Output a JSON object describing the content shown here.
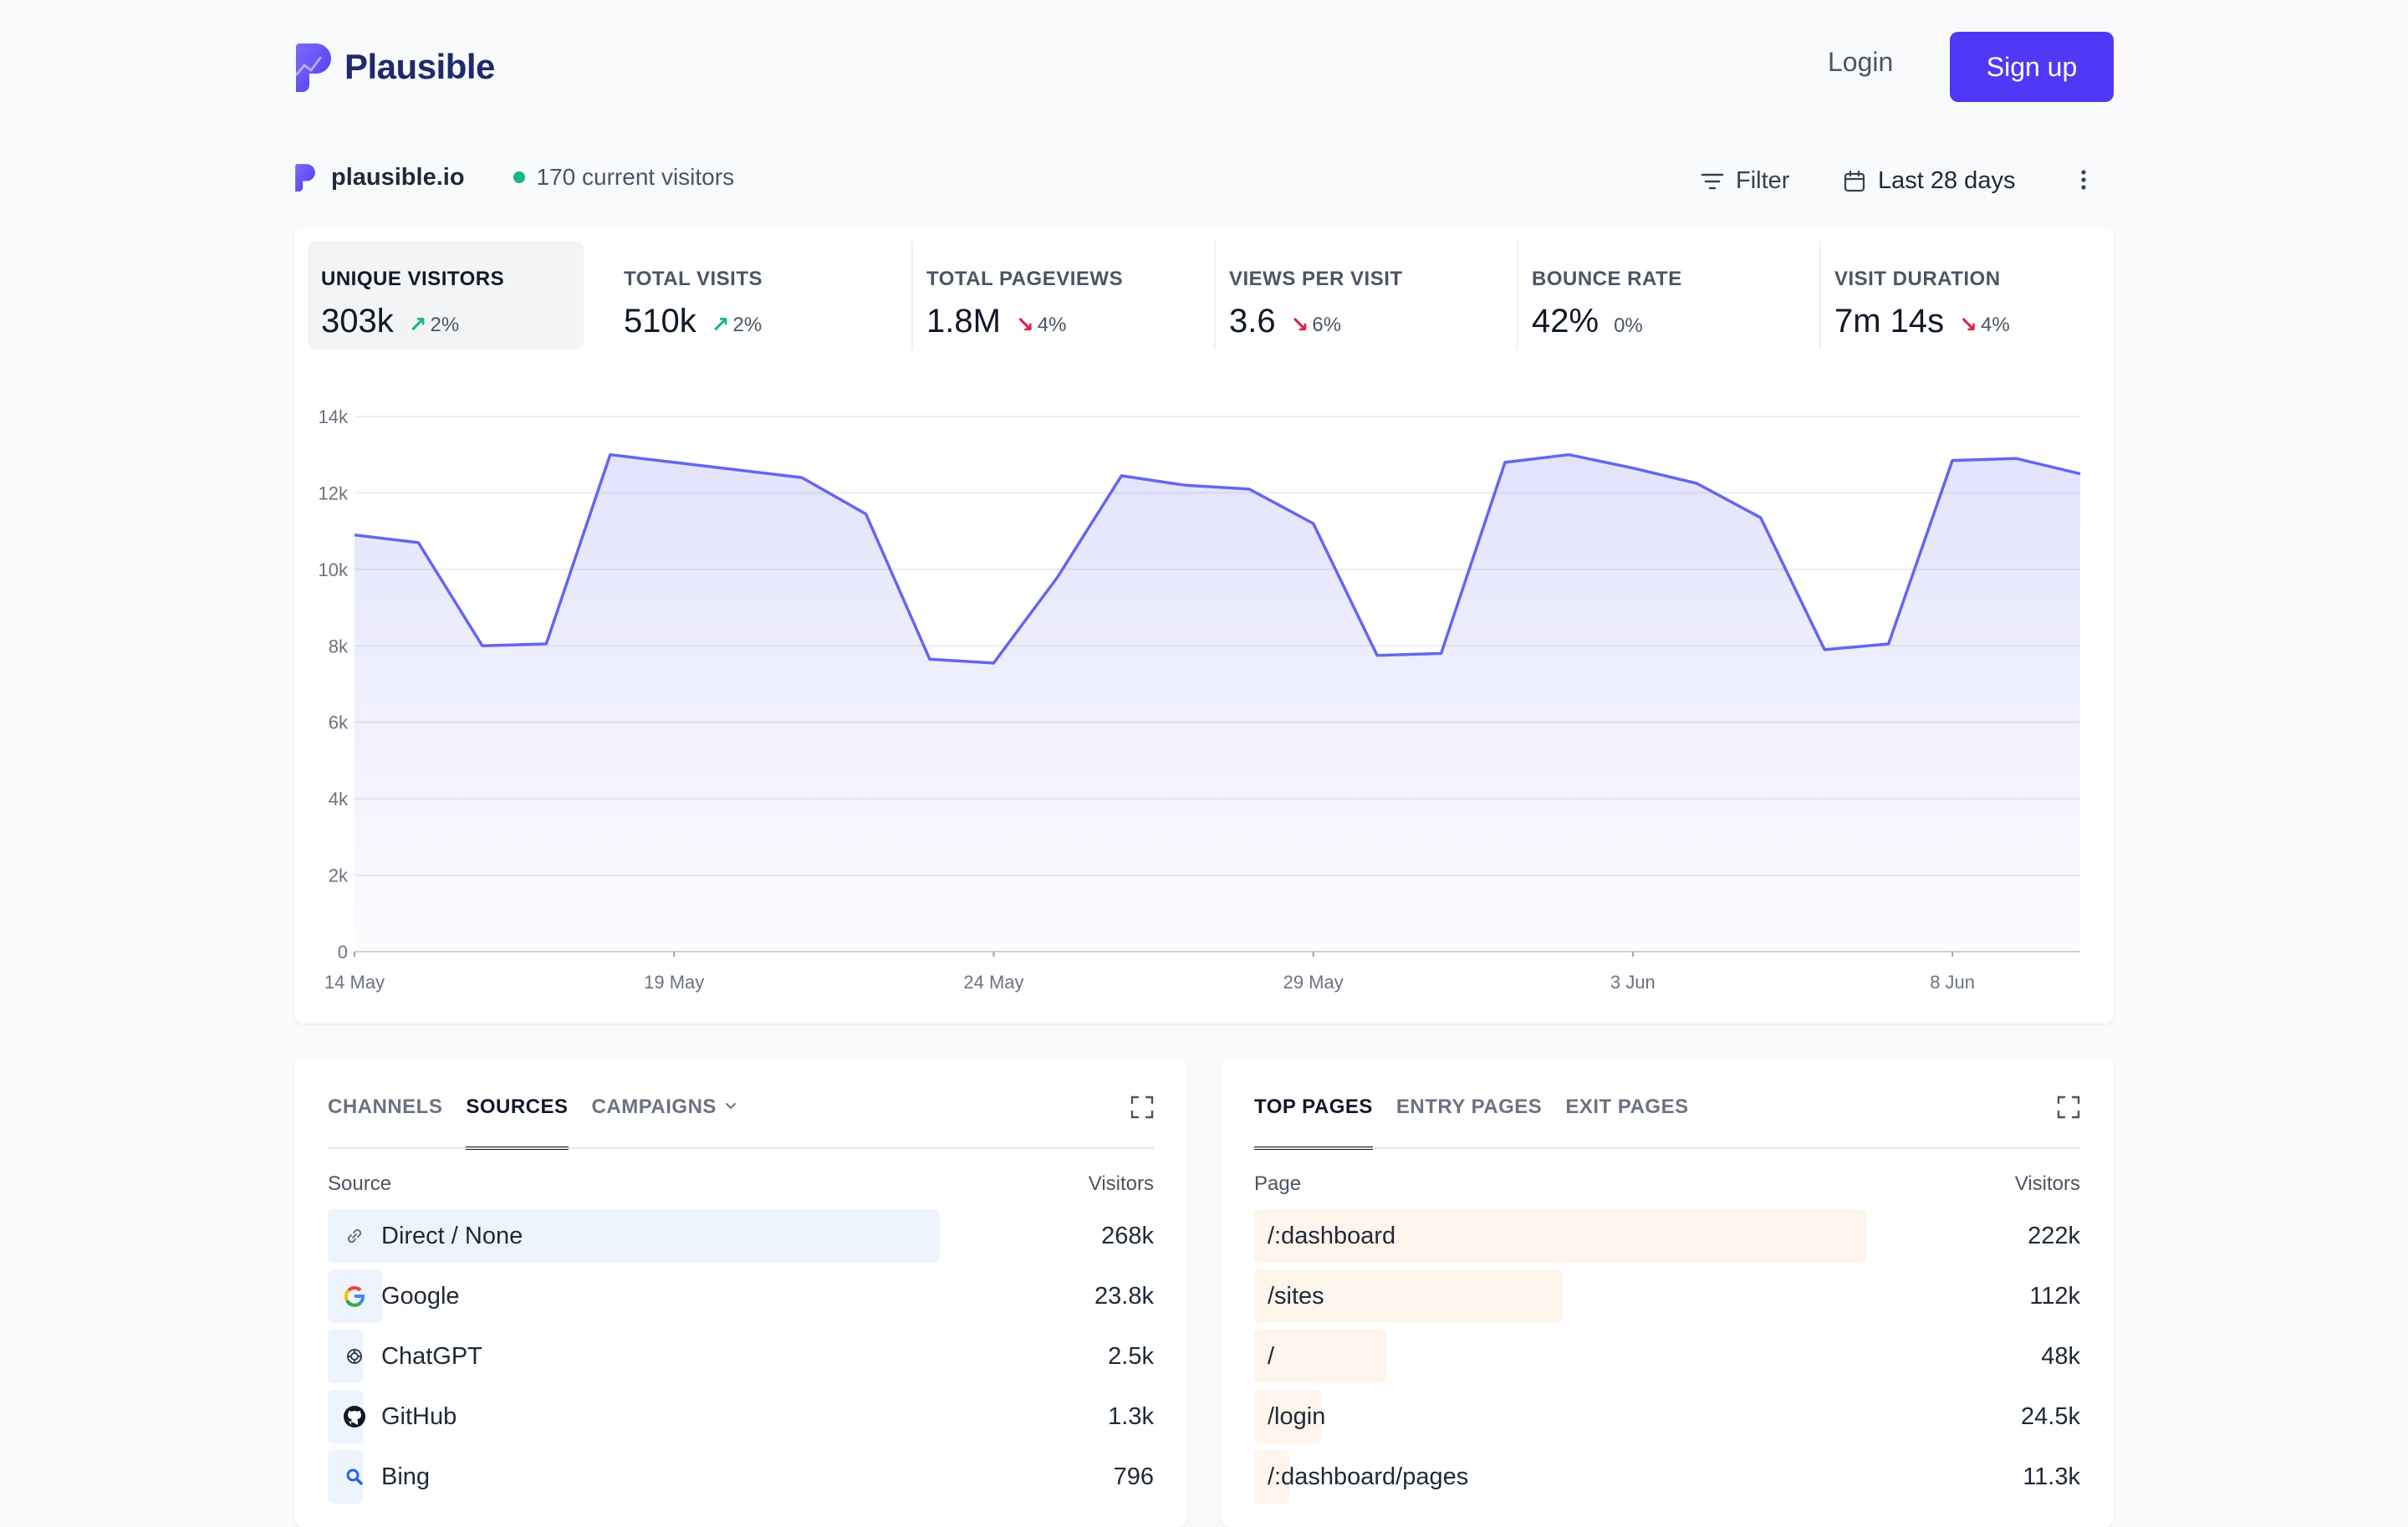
{
  "header": {
    "brand": "Plausible",
    "login_label": "Login",
    "signup_label": "Sign up",
    "accent": "#4f39f6"
  },
  "site": {
    "domain": "plausible.io",
    "current_visitors": "170 current visitors",
    "filter_label": "Filter",
    "date_range": "Last 28 days"
  },
  "stats": [
    {
      "label": "UNIQUE VISITORS",
      "value": "303k",
      "change": "2%",
      "direction": "up",
      "active": true
    },
    {
      "label": "TOTAL VISITS",
      "value": "510k",
      "change": "2%",
      "direction": "up"
    },
    {
      "label": "TOTAL PAGEVIEWS",
      "value": "1.8M",
      "change": "4%",
      "direction": "down"
    },
    {
      "label": "VIEWS PER VISIT",
      "value": "3.6",
      "change": "6%",
      "direction": "down"
    },
    {
      "label": "BOUNCE RATE",
      "value": "42%",
      "change": "0%",
      "direction": "none"
    },
    {
      "label": "VISIT DURATION",
      "value": "7m 14s",
      "change": "4%",
      "direction": "down"
    }
  ],
  "chart_data": {
    "type": "area",
    "title": "",
    "xlabel": "",
    "ylabel": "",
    "ylim": [
      0,
      14000
    ],
    "y_ticks": [
      "0",
      "2k",
      "4k",
      "6k",
      "8k",
      "10k",
      "12k",
      "14k"
    ],
    "x_ticks": [
      "14 May",
      "19 May",
      "24 May",
      "29 May",
      "3 Jun",
      "8 Jun"
    ],
    "grid": true,
    "line_color": "#6366f1",
    "series": [
      {
        "values": [
          10900,
          10700,
          8000,
          8050,
          13000,
          12800,
          12600,
          12400,
          11450,
          7650,
          7550,
          9800,
          12450,
          12200,
          12100,
          11200,
          7750,
          7800,
          12800,
          13000,
          12650,
          12250,
          11350,
          7900,
          8050,
          12850,
          12900,
          12500
        ]
      }
    ]
  },
  "sources_panel": {
    "tabs": [
      "CHANNELS",
      "SOURCES",
      "CAMPAIGNS"
    ],
    "active_tab": "SOURCES",
    "col_label": "Source",
    "col_value": "Visitors",
    "rows": [
      {
        "label": "Direct / None",
        "value": "268k",
        "fraction": 1.0,
        "icon": "link-icon"
      },
      {
        "label": "Google",
        "value": "23.8k",
        "fraction": 0.089,
        "icon": "google-icon"
      },
      {
        "label": "ChatGPT",
        "value": "2.5k",
        "fraction": 0.0093,
        "icon": "chatgpt-icon"
      },
      {
        "label": "GitHub",
        "value": "1.3k",
        "fraction": 0.005,
        "icon": "github-icon"
      },
      {
        "label": "Bing",
        "value": "796",
        "fraction": 0.003,
        "icon": "bing-icon"
      }
    ]
  },
  "pages_panel": {
    "tabs": [
      "TOP PAGES",
      "ENTRY PAGES",
      "EXIT PAGES"
    ],
    "active_tab": "TOP PAGES",
    "col_label": "Page",
    "col_value": "Visitors",
    "rows": [
      {
        "label": "/:dashboard",
        "value": "222k",
        "fraction": 1.0
      },
      {
        "label": "/sites",
        "value": "112k",
        "fraction": 0.504
      },
      {
        "label": "/",
        "value": "48k",
        "fraction": 0.216
      },
      {
        "label": "/login",
        "value": "24.5k",
        "fraction": 0.11
      },
      {
        "label": "/:dashboard/pages",
        "value": "11.3k",
        "fraction": 0.051
      }
    ]
  }
}
